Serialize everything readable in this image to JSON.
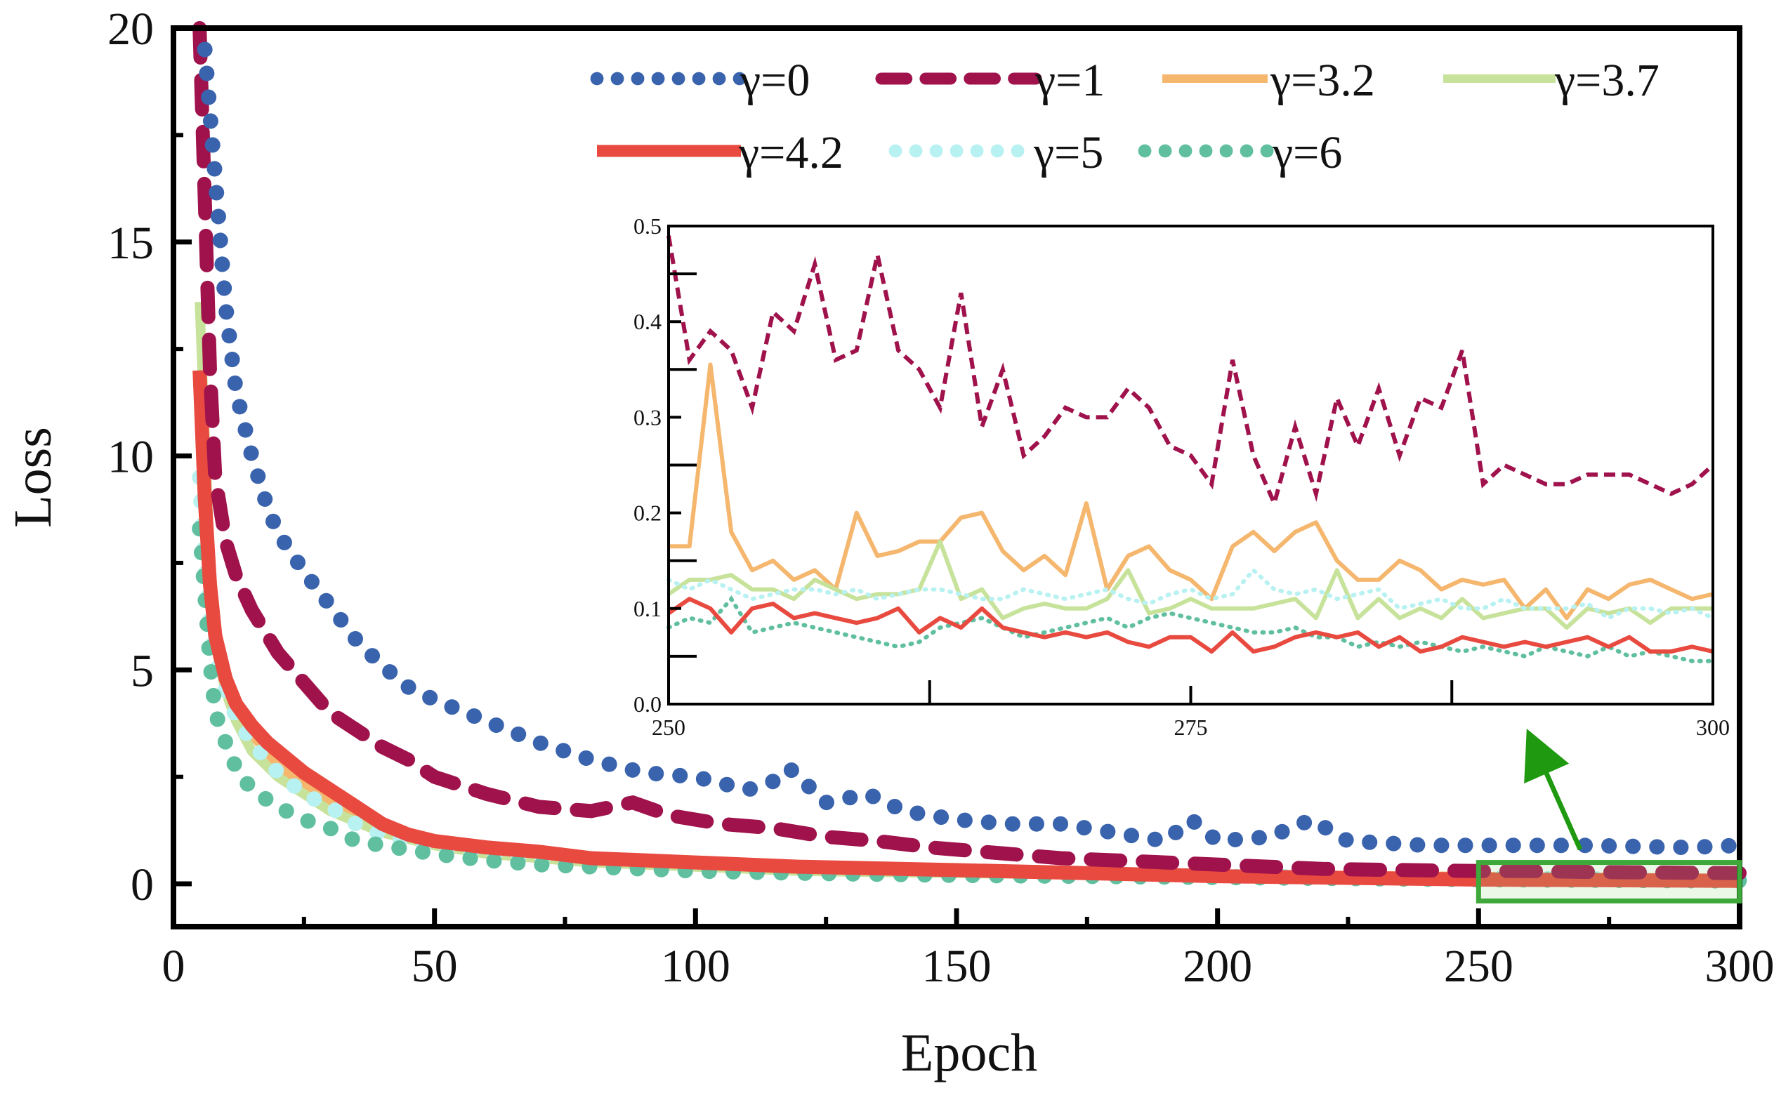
{
  "chart_data": {
    "type": "line",
    "xlabel": "Epoch",
    "ylabel": "Loss",
    "xlim": [
      0,
      300
    ],
    "ylim": [
      -1,
      20
    ],
    "xticks": [
      0,
      50,
      100,
      150,
      200,
      250,
      300
    ],
    "yticks": [
      0,
      5,
      10,
      15,
      20
    ],
    "x_tick_labels": [
      "0",
      "50",
      "100",
      "150",
      "200",
      "250",
      "300"
    ],
    "y_tick_labels": [
      "0",
      "5",
      "10",
      "15",
      "20"
    ],
    "legend": {
      "position": "top-right",
      "entries": [
        "γ=0",
        "γ=1",
        "γ=3.2",
        "γ=3.7",
        "γ=4.2",
        "γ=5",
        "γ=6"
      ]
    },
    "series": [
      {
        "name": "γ=0",
        "color": "#3a63ad",
        "style": "dotted-large",
        "x": [
          6,
          8,
          10,
          12,
          15,
          18,
          20,
          25,
          30,
          35,
          40,
          45,
          50,
          60,
          70,
          80,
          90,
          100,
          110,
          115,
          118,
          125,
          133,
          140,
          150,
          160,
          170,
          180,
          190,
          195,
          200,
          210,
          218,
          225,
          240,
          250,
          270,
          290,
          300
        ],
        "y": [
          19.5,
          16.5,
          13.5,
          11.5,
          10.0,
          8.8,
          8.2,
          7.3,
          6.5,
          5.7,
          5.1,
          4.6,
          4.3,
          3.8,
          3.3,
          2.9,
          2.6,
          2.5,
          2.2,
          2.4,
          2.7,
          1.9,
          2.1,
          1.7,
          1.5,
          1.4,
          1.4,
          1.2,
          1.0,
          1.5,
          1.0,
          1.1,
          1.5,
          1.0,
          0.9,
          0.9,
          0.9,
          0.85,
          0.9
        ]
      },
      {
        "name": "γ=1",
        "color": "#a0124c",
        "style": "dashed",
        "x": [
          5,
          6,
          7,
          8,
          10,
          12,
          15,
          20,
          25,
          30,
          35,
          40,
          45,
          50,
          60,
          70,
          80,
          88,
          95,
          105,
          115,
          125,
          135,
          145,
          160,
          170,
          180,
          190,
          200,
          210,
          220,
          230,
          250,
          260,
          270,
          280,
          290,
          300
        ],
        "y": [
          20,
          16,
          12,
          9.5,
          8,
          7.2,
          6.4,
          5.4,
          4.7,
          4.0,
          3.6,
          3.2,
          2.9,
          2.5,
          2.1,
          1.8,
          1.7,
          1.9,
          1.6,
          1.4,
          1.3,
          1.1,
          1.0,
          0.85,
          0.7,
          0.6,
          0.55,
          0.5,
          0.45,
          0.4,
          0.35,
          0.33,
          0.3,
          0.3,
          0.28,
          0.27,
          0.26,
          0.25
        ]
      },
      {
        "name": "γ=3.2",
        "color": "#f5b66e",
        "style": "solid",
        "x": [
          5,
          6,
          7,
          8,
          10,
          12,
          15,
          20,
          25,
          30,
          40,
          50,
          60,
          70,
          80,
          100,
          120,
          150,
          200,
          250,
          300
        ],
        "y": [
          11.5,
          8.5,
          6.8,
          5.8,
          4.9,
          4.2,
          3.5,
          2.8,
          2.3,
          1.9,
          1.3,
          1.0,
          0.8,
          0.65,
          0.55,
          0.45,
          0.35,
          0.28,
          0.2,
          0.17,
          0.12
        ]
      },
      {
        "name": "γ=3.7",
        "color": "#c7e29a",
        "style": "solid",
        "x": [
          5,
          6,
          7,
          8,
          10,
          12,
          15,
          20,
          25,
          30,
          40,
          50,
          60,
          70,
          80,
          100,
          120,
          150,
          200,
          250,
          300
        ],
        "y": [
          13.6,
          10.5,
          7.5,
          5.6,
          4.5,
          3.8,
          3.1,
          2.5,
          2.1,
          1.7,
          1.2,
          0.9,
          0.7,
          0.6,
          0.5,
          0.4,
          0.3,
          0.25,
          0.18,
          0.14,
          0.1
        ]
      },
      {
        "name": "γ=4.2",
        "color": "#e84a40",
        "style": "solid-thick",
        "x": [
          5,
          6,
          7,
          8,
          10,
          12,
          15,
          18,
          20,
          25,
          30,
          35,
          40,
          45,
          50,
          60,
          70,
          80,
          90,
          100,
          120,
          150,
          200,
          250,
          300
        ],
        "y": [
          12,
          9,
          7,
          5.8,
          4.8,
          4.2,
          3.7,
          3.3,
          3.1,
          2.6,
          2.2,
          1.8,
          1.4,
          1.15,
          1.0,
          0.85,
          0.75,
          0.6,
          0.55,
          0.5,
          0.4,
          0.32,
          0.18,
          0.1,
          0.07
        ]
      },
      {
        "name": "γ=5",
        "color": "#b8f1f1",
        "style": "dotted-large",
        "x": [
          5,
          6,
          7,
          8,
          10,
          12,
          15,
          20,
          25,
          30,
          35,
          40,
          50,
          60,
          70,
          80,
          100,
          120,
          150,
          200,
          250,
          300
        ],
        "y": [
          9.5,
          7.5,
          6.0,
          5.2,
          4.5,
          3.9,
          3.3,
          2.6,
          2.1,
          1.8,
          1.4,
          1.15,
          0.85,
          0.7,
          0.6,
          0.5,
          0.4,
          0.3,
          0.25,
          0.18,
          0.13,
          0.1
        ]
      },
      {
        "name": "γ=6",
        "color": "#5fbf9f",
        "style": "dotted-large",
        "x": [
          5,
          6,
          7,
          8,
          10,
          12,
          15,
          20,
          25,
          30,
          35,
          40,
          50,
          60,
          70,
          80,
          100,
          120,
          150,
          200,
          250,
          300
        ],
        "y": [
          8.3,
          6.8,
          5.2,
          4.0,
          3.3,
          2.7,
          2.2,
          1.8,
          1.5,
          1.3,
          1.0,
          0.9,
          0.7,
          0.55,
          0.45,
          0.4,
          0.3,
          0.25,
          0.2,
          0.15,
          0.1,
          0.07
        ]
      }
    ],
    "inset": {
      "xlim": [
        250,
        300
      ],
      "ylim": [
        0.0,
        0.5
      ],
      "xticks": [
        250,
        275,
        300
      ],
      "yticks": [
        0.0,
        0.1,
        0.2,
        0.3,
        0.4,
        0.5
      ],
      "x_tick_labels": [
        "250",
        "275",
        "300"
      ],
      "y_tick_labels": [
        "0.0",
        "0.1",
        "0.2",
        "0.3",
        "0.4",
        "0.5"
      ],
      "source_box": {
        "x": [
          250,
          300
        ],
        "y": [
          -0.4,
          0.5
        ]
      },
      "series": [
        {
          "name": "γ=1",
          "values": [
            0.49,
            0.36,
            0.39,
            0.37,
            0.31,
            0.41,
            0.39,
            0.46,
            0.36,
            0.37,
            0.47,
            0.37,
            0.35,
            0.31,
            0.43,
            0.29,
            0.35,
            0.26,
            0.28,
            0.31,
            0.3,
            0.3,
            0.33,
            0.31,
            0.27,
            0.26,
            0.23,
            0.36,
            0.26,
            0.21,
            0.29,
            0.22,
            0.32,
            0.27,
            0.33,
            0.26,
            0.32,
            0.31,
            0.37,
            0.23,
            0.25,
            0.24,
            0.23,
            0.23,
            0.24,
            0.24,
            0.24,
            0.23,
            0.22,
            0.23,
            0.25
          ]
        },
        {
          "name": "γ=3.2",
          "values": [
            0.165,
            0.165,
            0.355,
            0.18,
            0.14,
            0.15,
            0.13,
            0.14,
            0.12,
            0.2,
            0.155,
            0.16,
            0.17,
            0.17,
            0.195,
            0.2,
            0.16,
            0.14,
            0.155,
            0.135,
            0.21,
            0.12,
            0.155,
            0.165,
            0.14,
            0.13,
            0.11,
            0.165,
            0.18,
            0.16,
            0.18,
            0.19,
            0.15,
            0.13,
            0.13,
            0.15,
            0.14,
            0.12,
            0.13,
            0.125,
            0.13,
            0.1,
            0.12,
            0.09,
            0.12,
            0.11,
            0.125,
            0.13,
            0.12,
            0.11,
            0.115
          ]
        },
        {
          "name": "γ=3.7",
          "values": [
            0.115,
            0.13,
            0.13,
            0.135,
            0.12,
            0.12,
            0.11,
            0.13,
            0.12,
            0.11,
            0.115,
            0.115,
            0.12,
            0.17,
            0.11,
            0.12,
            0.09,
            0.1,
            0.105,
            0.1,
            0.1,
            0.11,
            0.14,
            0.095,
            0.1,
            0.11,
            0.1,
            0.1,
            0.1,
            0.105,
            0.11,
            0.09,
            0.14,
            0.09,
            0.11,
            0.09,
            0.1,
            0.09,
            0.11,
            0.09,
            0.095,
            0.1,
            0.1,
            0.08,
            0.1,
            0.095,
            0.1,
            0.085,
            0.1,
            0.1,
            0.1
          ]
        },
        {
          "name": "γ=4.2",
          "values": [
            0.095,
            0.11,
            0.1,
            0.075,
            0.1,
            0.105,
            0.09,
            0.095,
            0.09,
            0.085,
            0.09,
            0.1,
            0.075,
            0.09,
            0.08,
            0.1,
            0.08,
            0.075,
            0.07,
            0.075,
            0.07,
            0.075,
            0.065,
            0.06,
            0.07,
            0.07,
            0.055,
            0.075,
            0.055,
            0.06,
            0.07,
            0.075,
            0.07,
            0.075,
            0.06,
            0.07,
            0.055,
            0.06,
            0.07,
            0.065,
            0.06,
            0.065,
            0.06,
            0.065,
            0.07,
            0.06,
            0.07,
            0.055,
            0.055,
            0.06,
            0.055
          ]
        },
        {
          "name": "γ=5",
          "values": [
            0.13,
            0.12,
            0.13,
            0.12,
            0.11,
            0.115,
            0.12,
            0.12,
            0.115,
            0.12,
            0.11,
            0.115,
            0.12,
            0.12,
            0.115,
            0.11,
            0.11,
            0.12,
            0.115,
            0.11,
            0.115,
            0.12,
            0.11,
            0.105,
            0.115,
            0.12,
            0.11,
            0.115,
            0.14,
            0.12,
            0.115,
            0.12,
            0.11,
            0.115,
            0.12,
            0.1,
            0.105,
            0.11,
            0.1,
            0.1,
            0.11,
            0.1,
            0.1,
            0.1,
            0.105,
            0.09,
            0.1,
            0.1,
            0.095,
            0.1,
            0.09
          ]
        },
        {
          "name": "γ=6",
          "values": [
            0.08,
            0.09,
            0.085,
            0.11,
            0.075,
            0.08,
            0.085,
            0.08,
            0.075,
            0.07,
            0.065,
            0.06,
            0.065,
            0.08,
            0.085,
            0.09,
            0.08,
            0.07,
            0.075,
            0.08,
            0.085,
            0.09,
            0.08,
            0.09,
            0.095,
            0.09,
            0.085,
            0.08,
            0.075,
            0.075,
            0.08,
            0.07,
            0.07,
            0.06,
            0.065,
            0.06,
            0.065,
            0.06,
            0.055,
            0.06,
            0.055,
            0.05,
            0.06,
            0.055,
            0.05,
            0.06,
            0.05,
            0.055,
            0.05,
            0.045,
            0.045
          ]
        }
      ]
    }
  }
}
